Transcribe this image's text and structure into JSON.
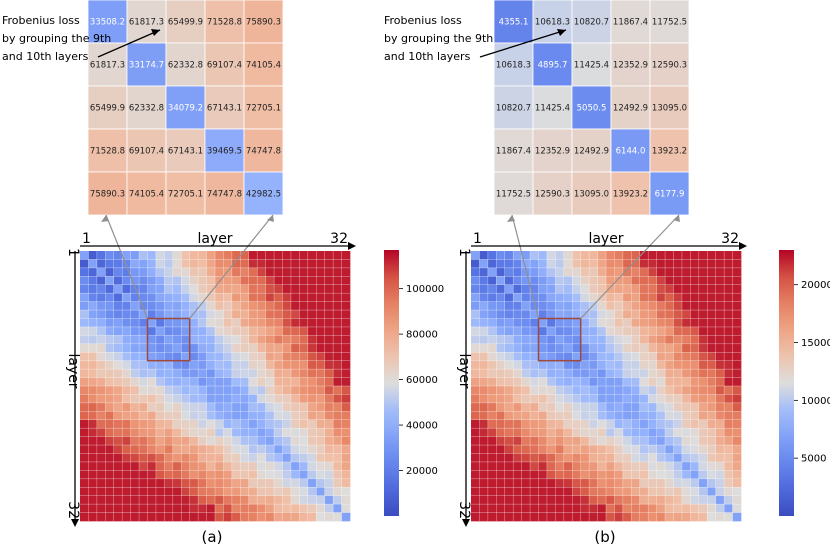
{
  "chart_data": [
    {
      "type": "heatmap",
      "caption": "(a)",
      "xlabel": "layer",
      "ylabel": "layer",
      "axis_start_label": "1",
      "axis_end_label": "32",
      "size": 32,
      "vmin": 0,
      "vmax": 117000,
      "colorbar_ticks": [
        20000,
        40000,
        60000,
        80000,
        100000
      ],
      "highlight_rows": [
        9,
        13
      ],
      "annotation": [
        "Frobenius loss",
        "by grouping the 9th",
        "and 10th layers"
      ],
      "inset_values": [
        [
          33508.2,
          61817.3,
          65499.9,
          71528.8,
          75890.3
        ],
        [
          61817.3,
          33174.7,
          62332.8,
          69107.4,
          74105.4
        ],
        [
          65499.9,
          62332.8,
          34079.2,
          67143.1,
          72705.1
        ],
        [
          71528.8,
          69107.4,
          67143.1,
          39469.5,
          74747.8
        ],
        [
          75890.3,
          74105.4,
          72705.1,
          74747.8,
          42982.5
        ]
      ]
    },
    {
      "type": "heatmap",
      "caption": "(b)",
      "xlabel": "layer",
      "ylabel": "layer",
      "axis_start_label": "1",
      "axis_end_label": "32",
      "size": 32,
      "vmin": 0,
      "vmax": 23000,
      "colorbar_ticks": [
        5000,
        10000,
        15000,
        20000
      ],
      "highlight_rows": [
        9,
        13
      ],
      "annotation": [
        "Frobenius loss",
        "by grouping the 9th",
        "and 10th layers"
      ],
      "inset_values": [
        [
          4355.1,
          10618.3,
          10820.7,
          11867.4,
          11752.5
        ],
        [
          10618.3,
          4895.7,
          11425.4,
          12352.9,
          12590.3
        ],
        [
          10820.7,
          11425.4,
          5050.5,
          12492.9,
          13095.0
        ],
        [
          11867.4,
          12352.9,
          12492.9,
          6144.0,
          13923.2
        ],
        [
          11752.5,
          12590.3,
          13095.0,
          13923.2,
          6177.9
        ]
      ]
    }
  ]
}
